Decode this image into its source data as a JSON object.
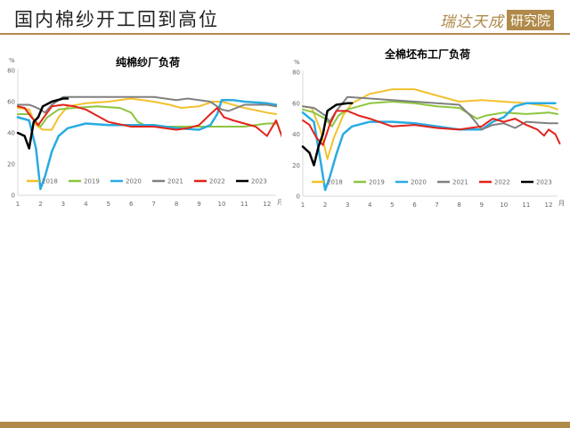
{
  "page": {
    "title": "国内棉纱开工回到高位"
  },
  "logo": {
    "text": "瑞达天成",
    "box": "研究院"
  },
  "chart_data": [
    {
      "type": "line",
      "title": "纯棉纱厂负荷",
      "ylabel": "%",
      "ylim": [
        0,
        80
      ],
      "yticks": [
        0,
        20,
        40,
        60,
        80
      ],
      "xlim": [
        1,
        12.4
      ],
      "xticks": [
        1,
        2,
        3,
        4,
        5,
        6,
        7,
        8,
        9,
        10,
        11,
        12
      ],
      "x_unit": "月",
      "series": [
        {
          "name": "2018",
          "color": "#f2c12e",
          "width": 2,
          "points": [
            [
              1,
              56
            ],
            [
              1.5,
              55
            ],
            [
              1.8,
              45
            ],
            [
              2.1,
              42
            ],
            [
              2.5,
              42
            ],
            [
              2.8,
              50
            ],
            [
              3.2,
              57
            ],
            [
              4,
              59
            ],
            [
              5,
              60
            ],
            [
              6,
              62
            ],
            [
              7,
              60
            ],
            [
              7.7,
              58
            ],
            [
              8.2,
              56
            ],
            [
              9,
              57
            ],
            [
              9.6,
              60
            ],
            [
              10,
              60
            ],
            [
              11,
              56
            ],
            [
              12,
              53
            ],
            [
              12.4,
              52
            ]
          ]
        },
        {
          "name": "2019",
          "color": "#8cc63f",
          "width": 2,
          "points": [
            [
              1,
              52
            ],
            [
              1.5,
              52
            ],
            [
              2,
              44
            ],
            [
              2.3,
              50
            ],
            [
              2.8,
              55
            ],
            [
              3.5,
              56
            ],
            [
              4.5,
              57
            ],
            [
              5.5,
              56
            ],
            [
              6,
              53
            ],
            [
              6.3,
              47
            ],
            [
              6.6,
              45
            ],
            [
              7.5,
              44
            ],
            [
              8.3,
              44
            ],
            [
              9,
              44
            ],
            [
              10,
              44
            ],
            [
              11,
              44
            ],
            [
              12,
              46
            ],
            [
              12.4,
              46
            ]
          ]
        },
        {
          "name": "2020",
          "color": "#29abe2",
          "width": 2.5,
          "points": [
            [
              1,
              50
            ],
            [
              1.5,
              48
            ],
            [
              1.8,
              30
            ],
            [
              2,
              4
            ],
            [
              2.2,
              12
            ],
            [
              2.5,
              28
            ],
            [
              2.8,
              38
            ],
            [
              3.2,
              43
            ],
            [
              4,
              46
            ],
            [
              5,
              45
            ],
            [
              6,
              45
            ],
            [
              7,
              45
            ],
            [
              8,
              43
            ],
            [
              9,
              42
            ],
            [
              9.5,
              45
            ],
            [
              9.8,
              52
            ],
            [
              10,
              61
            ],
            [
              10.5,
              61
            ],
            [
              11,
              60
            ],
            [
              12,
              59
            ],
            [
              12.4,
              58
            ]
          ]
        },
        {
          "name": "2021",
          "color": "#808080",
          "width": 2,
          "points": [
            [
              1,
              58
            ],
            [
              1.5,
              58
            ],
            [
              1.7,
              57
            ],
            [
              2,
              55
            ],
            [
              2.2,
              53
            ],
            [
              2.5,
              58
            ],
            [
              3,
              63
            ],
            [
              4,
              63
            ],
            [
              5,
              63
            ],
            [
              6,
              63
            ],
            [
              7,
              63
            ],
            [
              7.5,
              62
            ],
            [
              8,
              61
            ],
            [
              8.5,
              62
            ],
            [
              9,
              61
            ],
            [
              9.5,
              60
            ],
            [
              10,
              55
            ],
            [
              10.3,
              54
            ],
            [
              11,
              58
            ],
            [
              12,
              58
            ],
            [
              12.4,
              57
            ]
          ]
        },
        {
          "name": "2022",
          "color": "#e2231a",
          "width": 2,
          "points": [
            [
              1,
              57
            ],
            [
              1.3,
              56
            ],
            [
              1.6,
              50
            ],
            [
              1.9,
              45
            ],
            [
              2.2,
              51
            ],
            [
              2.5,
              57
            ],
            [
              3,
              58
            ],
            [
              3.5,
              57
            ],
            [
              4,
              55
            ],
            [
              5,
              47
            ],
            [
              6,
              44
            ],
            [
              7,
              44
            ],
            [
              8,
              42
            ],
            [
              8.5,
              43
            ],
            [
              9,
              45
            ],
            [
              9.5,
              52
            ],
            [
              9.8,
              56
            ],
            [
              10.1,
              50
            ],
            [
              10.5,
              48
            ],
            [
              11,
              46
            ],
            [
              11.5,
              44
            ],
            [
              12,
              38
            ],
            [
              12.4,
              48
            ],
            [
              12.7,
              36
            ],
            [
              12.8,
              30
            ]
          ]
        },
        {
          "name": "2023",
          "color": "#000000",
          "width": 2.5,
          "points": [
            [
              1,
              40
            ],
            [
              1.3,
              38
            ],
            [
              1.5,
              30
            ],
            [
              1.7,
              47
            ],
            [
              1.9,
              50
            ],
            [
              2.1,
              57
            ],
            [
              2.5,
              60
            ],
            [
              3,
              62
            ],
            [
              3.2,
              62
            ]
          ]
        }
      ]
    },
    {
      "type": "line",
      "title": "全棉坯布工厂负荷",
      "ylabel": "%",
      "ylim": [
        0,
        80
      ],
      "yticks": [
        0,
        20,
        40,
        60,
        80
      ],
      "xlim": [
        1,
        12.4
      ],
      "xticks": [
        1,
        2,
        3,
        4,
        5,
        6,
        7,
        8,
        9,
        10,
        11,
        12
      ],
      "x_unit": "月",
      "series": [
        {
          "name": "2018",
          "color": "#f2c12e",
          "width": 2,
          "points": [
            [
              1,
              58
            ],
            [
              1.4,
              57
            ],
            [
              1.8,
              42
            ],
            [
              2.1,
              24
            ],
            [
              2.4,
              38
            ],
            [
              2.8,
              52
            ],
            [
              3.2,
              60
            ],
            [
              4,
              66
            ],
            [
              5,
              69
            ],
            [
              6,
              69
            ],
            [
              7,
              65
            ],
            [
              8,
              61
            ],
            [
              9,
              62
            ],
            [
              10,
              61
            ],
            [
              11,
              60
            ],
            [
              12,
              58
            ],
            [
              12.4,
              56
            ]
          ]
        },
        {
          "name": "2019",
          "color": "#8cc63f",
          "width": 2,
          "points": [
            [
              1,
              56
            ],
            [
              1.5,
              54
            ],
            [
              2,
              50
            ],
            [
              2.3,
              45
            ],
            [
              2.6,
              52
            ],
            [
              3,
              56
            ],
            [
              4,
              60
            ],
            [
              5,
              61
            ],
            [
              6,
              60
            ],
            [
              7,
              58
            ],
            [
              8,
              57
            ],
            [
              8.8,
              50
            ],
            [
              9.2,
              52
            ],
            [
              10,
              54
            ],
            [
              11,
              53
            ],
            [
              12,
              54
            ],
            [
              12.4,
              53
            ]
          ]
        },
        {
          "name": "2020",
          "color": "#29abe2",
          "width": 2.5,
          "points": [
            [
              1,
              54
            ],
            [
              1.5,
              48
            ],
            [
              1.8,
              22
            ],
            [
              2,
              4
            ],
            [
              2.2,
              12
            ],
            [
              2.5,
              27
            ],
            [
              2.8,
              40
            ],
            [
              3.2,
              45
            ],
            [
              4,
              48
            ],
            [
              5,
              48
            ],
            [
              6,
              47
            ],
            [
              7,
              45
            ],
            [
              8,
              43
            ],
            [
              9,
              43
            ],
            [
              9.5,
              48
            ],
            [
              10,
              51
            ],
            [
              10.5,
              58
            ],
            [
              11,
              60
            ],
            [
              12,
              60
            ],
            [
              12.3,
              60
            ]
          ]
        },
        {
          "name": "2021",
          "color": "#808080",
          "width": 2,
          "points": [
            [
              1,
              58
            ],
            [
              1.5,
              57
            ],
            [
              1.7,
              55
            ],
            [
              2,
              52
            ],
            [
              2.2,
              48
            ],
            [
              2.5,
              55
            ],
            [
              3,
              64
            ],
            [
              4,
              63
            ],
            [
              5,
              62
            ],
            [
              6,
              61
            ],
            [
              7,
              60
            ],
            [
              8,
              59
            ],
            [
              8.5,
              52
            ],
            [
              9,
              43
            ],
            [
              9.5,
              46
            ],
            [
              10,
              47
            ],
            [
              10.5,
              44
            ],
            [
              11,
              48
            ],
            [
              12,
              47
            ],
            [
              12.4,
              47
            ]
          ]
        },
        {
          "name": "2022",
          "color": "#e2231a",
          "width": 2,
          "points": [
            [
              1,
              49
            ],
            [
              1.3,
              46
            ],
            [
              1.6,
              38
            ],
            [
              1.9,
              33
            ],
            [
              2.2,
              46
            ],
            [
              2.5,
              55
            ],
            [
              3,
              55
            ],
            [
              3.5,
              52
            ],
            [
              4,
              50
            ],
            [
              5,
              45
            ],
            [
              6,
              46
            ],
            [
              7,
              44
            ],
            [
              8,
              43
            ],
            [
              9,
              45
            ],
            [
              9.5,
              50
            ],
            [
              10,
              48
            ],
            [
              10.5,
              50
            ],
            [
              11,
              46
            ],
            [
              11.5,
              43
            ],
            [
              11.8,
              39
            ],
            [
              12,
              43
            ],
            [
              12.3,
              40
            ],
            [
              12.5,
              34
            ]
          ]
        },
        {
          "name": "2023",
          "color": "#000000",
          "width": 2.5,
          "points": [
            [
              1,
              32
            ],
            [
              1.3,
              28
            ],
            [
              1.5,
              20
            ],
            [
              1.7,
              32
            ],
            [
              1.9,
              40
            ],
            [
              2.1,
              55
            ],
            [
              2.5,
              59
            ],
            [
              3,
              60
            ],
            [
              3.2,
              60
            ]
          ]
        }
      ]
    }
  ]
}
